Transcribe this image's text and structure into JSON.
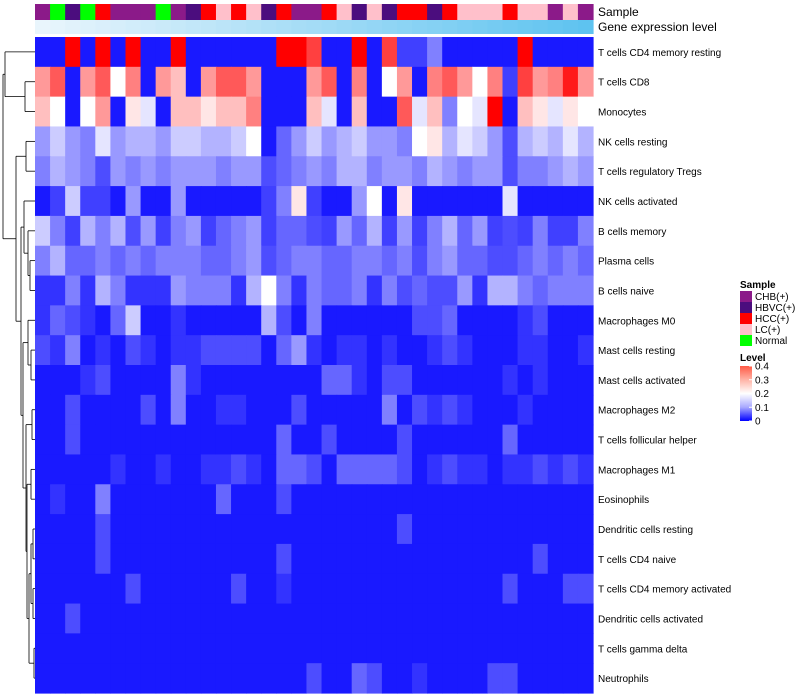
{
  "chart_data": {
    "type": "heatmap",
    "title": "",
    "xlabel": "",
    "ylabel": "",
    "annotation_tracks": [
      "Sample",
      "Gene expression level"
    ],
    "rows": [
      "T cells CD4 memory resting",
      "T cells CD8",
      "Monocytes",
      "NK cells resting",
      "T cells regulatory  Tregs",
      "NK cells activated",
      "B cells memory",
      "Plasma cells",
      "B cells naive",
      "Macrophages M0",
      "Mast cells resting",
      "Mast cells activated",
      "Macrophages M2",
      "T cells follicular helper",
      "Macrophages M1",
      "Eosinophils",
      "Dendritic cells resting",
      "T cells CD4 naive",
      "T cells CD4 memory activated",
      "Dendritic cells activated",
      "T cells gamma delta",
      "Neutrophils"
    ],
    "sample_groups": [
      "CHB(+)",
      "Normal",
      "HBVC(+)",
      "Normal",
      "HCC(+)",
      "CHB(+)",
      "CHB(+)",
      "CHB(+)",
      "Normal",
      "CHB(+)",
      "HBVC(+)",
      "HCC(+)",
      "LC(+)",
      "HCC(+)",
      "LC(+)",
      "HBVC(+)",
      "HCC(+)",
      "CHB(+)",
      "CHB(+)",
      "HCC(+)",
      "LC(+)",
      "HBVC(+)",
      "LC(+)",
      "HBVC(+)",
      "HCC(+)",
      "HCC(+)",
      "HBVC(+)",
      "HCC(+)",
      "LC(+)",
      "LC(+)",
      "LC(+)",
      "HCC(+)",
      "LC(+)",
      "LC(+)",
      "CHB(+)",
      "LC(+)",
      "CHB(+)"
    ],
    "expression_level": [
      0.02,
      0.04,
      0.06,
      0.08,
      0.1,
      0.12,
      0.14,
      0.16,
      0.18,
      0.2,
      0.22,
      0.24,
      0.26,
      0.28,
      0.3,
      0.32,
      0.34,
      0.36,
      0.38,
      0.4,
      0.42,
      0.44,
      0.46,
      0.48,
      0.5,
      0.52,
      0.54,
      0.56,
      0.58,
      0.6,
      0.62,
      0.64,
      0.66,
      0.68,
      0.7,
      0.72,
      0.74
    ],
    "values": [
      [
        0.02,
        0.02,
        0.4,
        0.02,
        0.4,
        0.02,
        0.4,
        0.02,
        0.02,
        0.4,
        0.02,
        0.02,
        0.02,
        0.02,
        0.02,
        0.02,
        0.4,
        0.4,
        0.35,
        0.02,
        0.02,
        0.4,
        0.02,
        0.35,
        0.05,
        0.05,
        0.1,
        0.02,
        0.02,
        0.02,
        0.02,
        0.02,
        0.4,
        0.02,
        0.02,
        0.02,
        0.02
      ],
      [
        0.28,
        0.33,
        0.02,
        0.28,
        0.33,
        0.2,
        0.3,
        0.02,
        0.28,
        0.25,
        0.02,
        0.28,
        0.33,
        0.33,
        0.28,
        0.02,
        0.02,
        0.02,
        0.28,
        0.33,
        0.02,
        0.3,
        0.02,
        0.2,
        0.28,
        0.02,
        0.3,
        0.33,
        0.28,
        0.2,
        0.3,
        0.05,
        0.35,
        0.28,
        0.3,
        0.38,
        0.28
      ],
      [
        0.25,
        0.2,
        0.02,
        0.2,
        0.28,
        0.02,
        0.22,
        0.18,
        0.02,
        0.25,
        0.25,
        0.22,
        0.25,
        0.25,
        0.3,
        0.02,
        0.02,
        0.02,
        0.25,
        0.18,
        0.02,
        0.25,
        0.02,
        0.02,
        0.33,
        0.18,
        0.25,
        0.1,
        0.2,
        0.18,
        0.4,
        0.02,
        0.25,
        0.22,
        0.18,
        0.22,
        0.2
      ],
      [
        0.12,
        0.16,
        0.12,
        0.1,
        0.18,
        0.12,
        0.14,
        0.14,
        0.12,
        0.16,
        0.16,
        0.14,
        0.14,
        0.16,
        0.2,
        0.02,
        0.08,
        0.12,
        0.16,
        0.12,
        0.14,
        0.16,
        0.12,
        0.12,
        0.1,
        0.2,
        0.22,
        0.14,
        0.18,
        0.16,
        0.12,
        0.06,
        0.14,
        0.16,
        0.14,
        0.18,
        0.14
      ],
      [
        0.1,
        0.14,
        0.12,
        0.1,
        0.06,
        0.12,
        0.1,
        0.12,
        0.1,
        0.12,
        0.12,
        0.12,
        0.1,
        0.12,
        0.12,
        0.06,
        0.08,
        0.1,
        0.12,
        0.1,
        0.14,
        0.14,
        0.1,
        0.12,
        0.12,
        0.1,
        0.14,
        0.12,
        0.1,
        0.12,
        0.12,
        0.06,
        0.1,
        0.1,
        0.12,
        0.14,
        0.12
      ],
      [
        0.02,
        0.05,
        0.16,
        0.05,
        0.05,
        0.02,
        0.12,
        0.02,
        0.02,
        0.12,
        0.02,
        0.02,
        0.02,
        0.02,
        0.02,
        0.05,
        0.1,
        0.22,
        0.05,
        0.02,
        0.02,
        0.12,
        0.2,
        0.02,
        0.22,
        0.02,
        0.02,
        0.02,
        0.02,
        0.02,
        0.02,
        0.18,
        0.02,
        0.02,
        0.02,
        0.02,
        0.02
      ],
      [
        0.16,
        0.1,
        0.05,
        0.14,
        0.1,
        0.14,
        0.06,
        0.12,
        0.05,
        0.1,
        0.12,
        0.05,
        0.08,
        0.1,
        0.12,
        0.05,
        0.08,
        0.08,
        0.06,
        0.05,
        0.12,
        0.08,
        0.14,
        0.05,
        0.12,
        0.05,
        0.1,
        0.14,
        0.08,
        0.12,
        0.05,
        0.06,
        0.05,
        0.1,
        0.05,
        0.05,
        0.1
      ],
      [
        0.1,
        0.14,
        0.08,
        0.08,
        0.1,
        0.08,
        0.1,
        0.08,
        0.1,
        0.1,
        0.1,
        0.08,
        0.08,
        0.1,
        0.12,
        0.06,
        0.08,
        0.1,
        0.1,
        0.08,
        0.08,
        0.1,
        0.1,
        0.08,
        0.1,
        0.06,
        0.1,
        0.12,
        0.08,
        0.08,
        0.06,
        0.06,
        0.08,
        0.1,
        0.08,
        0.1,
        0.08
      ],
      [
        0.04,
        0.04,
        0.1,
        0.04,
        0.14,
        0.1,
        0.04,
        0.04,
        0.04,
        0.12,
        0.1,
        0.1,
        0.1,
        0.04,
        0.14,
        0.2,
        0.1,
        0.04,
        0.1,
        0.08,
        0.08,
        0.1,
        0.04,
        0.1,
        0.06,
        0.08,
        0.06,
        0.06,
        0.12,
        0.04,
        0.14,
        0.14,
        0.1,
        0.08,
        0.1,
        0.1,
        0.1
      ],
      [
        0.04,
        0.08,
        0.06,
        0.04,
        0.02,
        0.08,
        0.16,
        0.02,
        0.02,
        0.04,
        0.02,
        0.02,
        0.02,
        0.02,
        0.02,
        0.14,
        0.06,
        0.02,
        0.1,
        0.02,
        0.02,
        0.02,
        0.02,
        0.02,
        0.02,
        0.06,
        0.06,
        0.08,
        0.02,
        0.02,
        0.02,
        0.02,
        0.04,
        0.06,
        0.02,
        0.02,
        0.02
      ],
      [
        0.06,
        0.04,
        0.1,
        0.02,
        0.04,
        0.02,
        0.06,
        0.04,
        0.02,
        0.04,
        0.04,
        0.06,
        0.06,
        0.06,
        0.06,
        0.02,
        0.08,
        0.12,
        0.04,
        0.02,
        0.04,
        0.04,
        0.02,
        0.04,
        0.02,
        0.02,
        0.04,
        0.06,
        0.04,
        0.02,
        0.02,
        0.02,
        0.04,
        0.04,
        0.02,
        0.02,
        0.04
      ],
      [
        0.02,
        0.02,
        0.02,
        0.04,
        0.06,
        0.02,
        0.02,
        0.02,
        0.02,
        0.1,
        0.04,
        0.02,
        0.02,
        0.02,
        0.02,
        0.02,
        0.02,
        0.02,
        0.02,
        0.08,
        0.08,
        0.04,
        0.02,
        0.06,
        0.06,
        0.02,
        0.02,
        0.02,
        0.02,
        0.02,
        0.02,
        0.04,
        0.02,
        0.04,
        0.02,
        0.02,
        0.02
      ],
      [
        0.02,
        0.02,
        0.06,
        0.02,
        0.02,
        0.02,
        0.02,
        0.06,
        0.02,
        0.1,
        0.02,
        0.02,
        0.04,
        0.04,
        0.02,
        0.02,
        0.02,
        0.06,
        0.02,
        0.02,
        0.02,
        0.02,
        0.02,
        0.1,
        0.02,
        0.06,
        0.04,
        0.06,
        0.04,
        0.02,
        0.02,
        0.02,
        0.04,
        0.02,
        0.02,
        0.02,
        0.02
      ],
      [
        0.02,
        0.02,
        0.06,
        0.02,
        0.02,
        0.02,
        0.02,
        0.02,
        0.02,
        0.02,
        0.02,
        0.02,
        0.02,
        0.02,
        0.02,
        0.02,
        0.08,
        0.02,
        0.02,
        0.06,
        0.02,
        0.02,
        0.02,
        0.02,
        0.06,
        0.02,
        0.02,
        0.02,
        0.02,
        0.02,
        0.02,
        0.08,
        0.02,
        0.02,
        0.02,
        0.02,
        0.02
      ],
      [
        0.02,
        0.02,
        0.02,
        0.02,
        0.02,
        0.04,
        0.02,
        0.02,
        0.04,
        0.02,
        0.02,
        0.04,
        0.04,
        0.06,
        0.04,
        0.02,
        0.08,
        0.08,
        0.06,
        0.02,
        0.08,
        0.08,
        0.08,
        0.08,
        0.06,
        0.02,
        0.04,
        0.06,
        0.04,
        0.04,
        0.02,
        0.04,
        0.04,
        0.06,
        0.04,
        0.06,
        0.04
      ],
      [
        0.02,
        0.04,
        0.02,
        0.02,
        0.1,
        0.02,
        0.02,
        0.02,
        0.02,
        0.02,
        0.02,
        0.02,
        0.08,
        0.02,
        0.02,
        0.02,
        0.06,
        0.02,
        0.02,
        0.02,
        0.02,
        0.02,
        0.02,
        0.02,
        0.02,
        0.02,
        0.02,
        0.02,
        0.02,
        0.02,
        0.02,
        0.02,
        0.02,
        0.02,
        0.02,
        0.02,
        0.02
      ],
      [
        0.02,
        0.02,
        0.02,
        0.02,
        0.06,
        0.02,
        0.02,
        0.02,
        0.02,
        0.02,
        0.02,
        0.02,
        0.02,
        0.02,
        0.02,
        0.02,
        0.02,
        0.02,
        0.02,
        0.02,
        0.02,
        0.02,
        0.02,
        0.02,
        0.06,
        0.02,
        0.02,
        0.02,
        0.02,
        0.02,
        0.02,
        0.02,
        0.02,
        0.02,
        0.02,
        0.02,
        0.02
      ],
      [
        0.02,
        0.02,
        0.02,
        0.02,
        0.06,
        0.02,
        0.02,
        0.02,
        0.02,
        0.02,
        0.02,
        0.02,
        0.02,
        0.02,
        0.02,
        0.02,
        0.06,
        0.02,
        0.02,
        0.02,
        0.02,
        0.02,
        0.02,
        0.02,
        0.02,
        0.02,
        0.02,
        0.02,
        0.02,
        0.02,
        0.02,
        0.02,
        0.02,
        0.06,
        0.02,
        0.02,
        0.02
      ],
      [
        0.02,
        0.02,
        0.02,
        0.02,
        0.02,
        0.02,
        0.06,
        0.02,
        0.02,
        0.02,
        0.02,
        0.02,
        0.02,
        0.06,
        0.02,
        0.02,
        0.04,
        0.02,
        0.02,
        0.02,
        0.02,
        0.02,
        0.02,
        0.02,
        0.02,
        0.02,
        0.02,
        0.02,
        0.02,
        0.02,
        0.02,
        0.06,
        0.02,
        0.02,
        0.02,
        0.06,
        0.06
      ],
      [
        0.02,
        0.02,
        0.06,
        0.02,
        0.02,
        0.02,
        0.02,
        0.02,
        0.02,
        0.02,
        0.02,
        0.02,
        0.02,
        0.02,
        0.02,
        0.02,
        0.02,
        0.02,
        0.02,
        0.02,
        0.02,
        0.02,
        0.02,
        0.02,
        0.02,
        0.02,
        0.02,
        0.02,
        0.02,
        0.02,
        0.02,
        0.02,
        0.02,
        0.02,
        0.02,
        0.02,
        0.02
      ],
      [
        0.02,
        0.02,
        0.02,
        0.02,
        0.02,
        0.02,
        0.02,
        0.02,
        0.02,
        0.02,
        0.02,
        0.02,
        0.02,
        0.02,
        0.02,
        0.02,
        0.02,
        0.02,
        0.02,
        0.02,
        0.02,
        0.02,
        0.02,
        0.02,
        0.02,
        0.02,
        0.02,
        0.02,
        0.02,
        0.02,
        0.02,
        0.02,
        0.02,
        0.02,
        0.02,
        0.02,
        0.02
      ],
      [
        0.02,
        0.02,
        0.02,
        0.02,
        0.02,
        0.02,
        0.02,
        0.02,
        0.02,
        0.02,
        0.02,
        0.02,
        0.02,
        0.02,
        0.02,
        0.02,
        0.02,
        0.02,
        0.06,
        0.02,
        0.02,
        0.08,
        0.06,
        0.02,
        0.02,
        0.04,
        0.02,
        0.02,
        0.02,
        0.02,
        0.06,
        0.06,
        0.02,
        0.02,
        0.02,
        0.02,
        0.02
      ]
    ],
    "legend": {
      "placement": "right",
      "sample_title": "Sample",
      "sample_entries": [
        {
          "label": "CHB(+)",
          "color": "#8B1A89"
        },
        {
          "label": "HBVC(+)",
          "color": "#4B0D7E"
        },
        {
          "label": "HCC(+)",
          "color": "#FF0000"
        },
        {
          "label": "LC(+)",
          "color": "#FFC0CB"
        },
        {
          "label": "Normal",
          "color": "#00FF00"
        }
      ],
      "level_title": "Level",
      "level_ticks": [
        "0.4",
        "0.3",
        "0.2",
        "0.1",
        "0"
      ],
      "level_range": [
        0,
        0.4
      ]
    },
    "colors": {
      "low": "#0000FF",
      "mid": "#FFFFFF",
      "high": "#FF0000",
      "expression_start": "#E9F5FC",
      "expression_end": "#5EC3F0",
      "dendrogram": "#000000"
    }
  }
}
